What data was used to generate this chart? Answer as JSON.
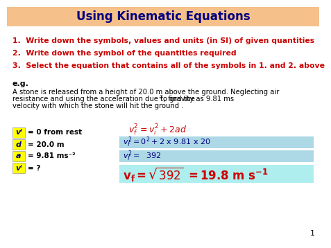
{
  "title": "Using Kinematic Equations",
  "title_color": "#000080",
  "title_bg_color": "#F5C08A",
  "bg_color": "#FFFFFF",
  "step1": "1.  Write down the symbols, values and units (in SI) of given quantities",
  "step2": "2.  Write down the symbol of the quantities required",
  "step3": "3.  Select the equation that contains all of the symbols in 1. and 2. above",
  "steps_color": "#CC0000",
  "eg_label": "e.g.",
  "problem_line1": "A stone is released from a height of 20.0 m above the ground. Neglecting air",
  "problem_line2a": "resistance and using the acceleration due to gravity as 9.81 ms",
  "problem_line2b": "-2",
  "problem_line2c": ", find the",
  "problem_line3": "velocity with which the stone will hit the ground .",
  "problem_color": "#000000",
  "given_box_color": "#FFFF00",
  "cyan_box_color": "#ADD8E6",
  "final_box_color": "#AFEEEE",
  "steps_font_size": 7.8,
  "page_number": "1"
}
